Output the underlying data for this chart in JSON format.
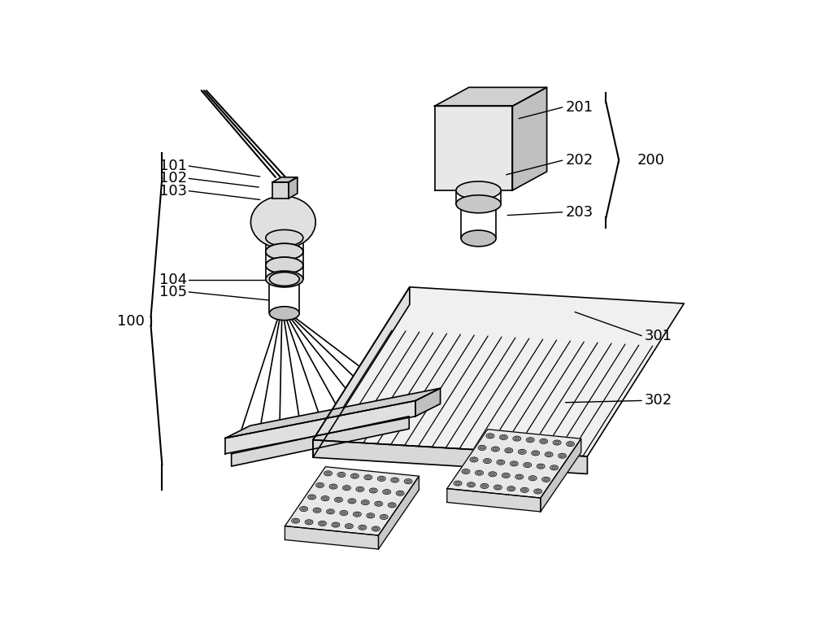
{
  "bg_color": "#ffffff",
  "line_color": "#000000",
  "label_fontsize": 13,
  "title": "",
  "fig_width": 10.0,
  "fig_height": 7.67,
  "dpi": 100
}
